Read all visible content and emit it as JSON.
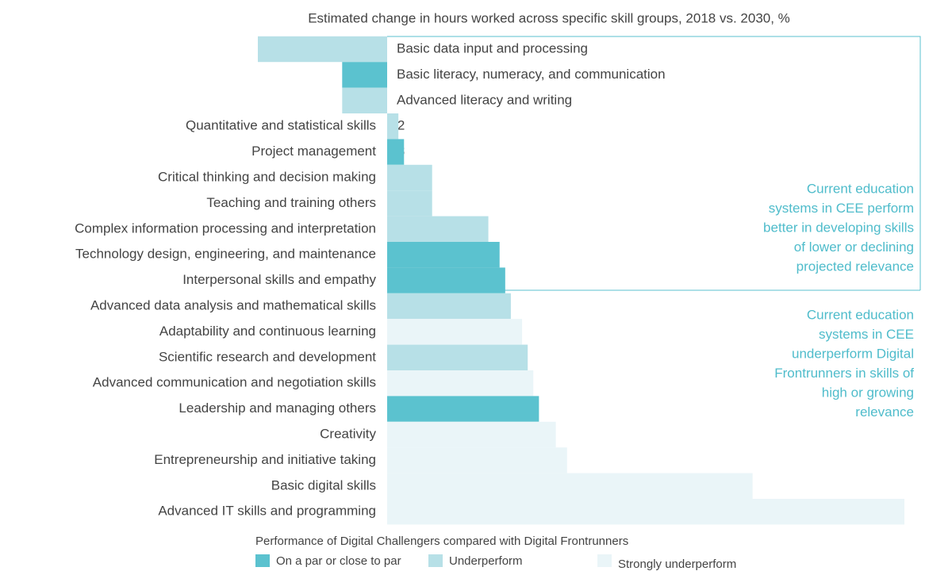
{
  "chart_data": {
    "type": "bar",
    "title": "Estimated change in hours worked across specific skill groups, 2018 vs. 2030, %",
    "categories": [
      "Basic data input and processing",
      "Basic literacy, numeracy, and communication",
      "Advanced literacy and writing",
      "Quantitative and statistical skills",
      "Project management",
      "Critical thinking and decision making",
      "Teaching and training others",
      "Complex information processing and interpretation",
      "Technology design, engineering, and maintenance",
      "Interpersonal skills and empathy",
      "Advanced data analysis and mathematical skills",
      "Adaptability and continuous learning",
      "Scientific research and development",
      "Advanced communication and negotiation skills",
      "Leadership and managing others",
      "Creativity",
      "Entrepreneurship and initiative taking",
      "Basic digital skills",
      "Advanced IT skills and programming"
    ],
    "values": [
      -23,
      -8,
      -8,
      2,
      3,
      8,
      8,
      18,
      20,
      21,
      22,
      24,
      25,
      26,
      27,
      30,
      32,
      65,
      92
    ],
    "value_labels": [
      "–23",
      "–8",
      "–8",
      "+2",
      "+3",
      "+8",
      "+8",
      "+18",
      "+20",
      "+21",
      "+22",
      "+24",
      "+25",
      "+26",
      "+27",
      "+30",
      "+32",
      "+65",
      "+92"
    ],
    "performance": [
      1,
      0,
      1,
      1,
      0,
      1,
      1,
      1,
      0,
      0,
      1,
      2,
      1,
      2,
      0,
      2,
      2,
      2,
      2
    ],
    "legend_title": "Performance of Digital Challengers compared with Digital Frontrunners",
    "legend": [
      {
        "name": "On a par or close to par",
        "color": "#5bc2cf"
      },
      {
        "name": "Underperform",
        "color": "#b7e0e7"
      },
      {
        "name": "Strongly underperform",
        "color": "#eaf5f8"
      }
    ],
    "annotations": [
      {
        "lines": [
          "Current education",
          "systems in CEE perform",
          "better in developing skills",
          "of lower or declining",
          "projected relevance"
        ]
      },
      {
        "lines": [
          "Current education",
          "systems in CEE",
          "underperform Digital",
          "Frontrunners in skills of",
          "high or growing",
          "relevance"
        ]
      }
    ]
  }
}
